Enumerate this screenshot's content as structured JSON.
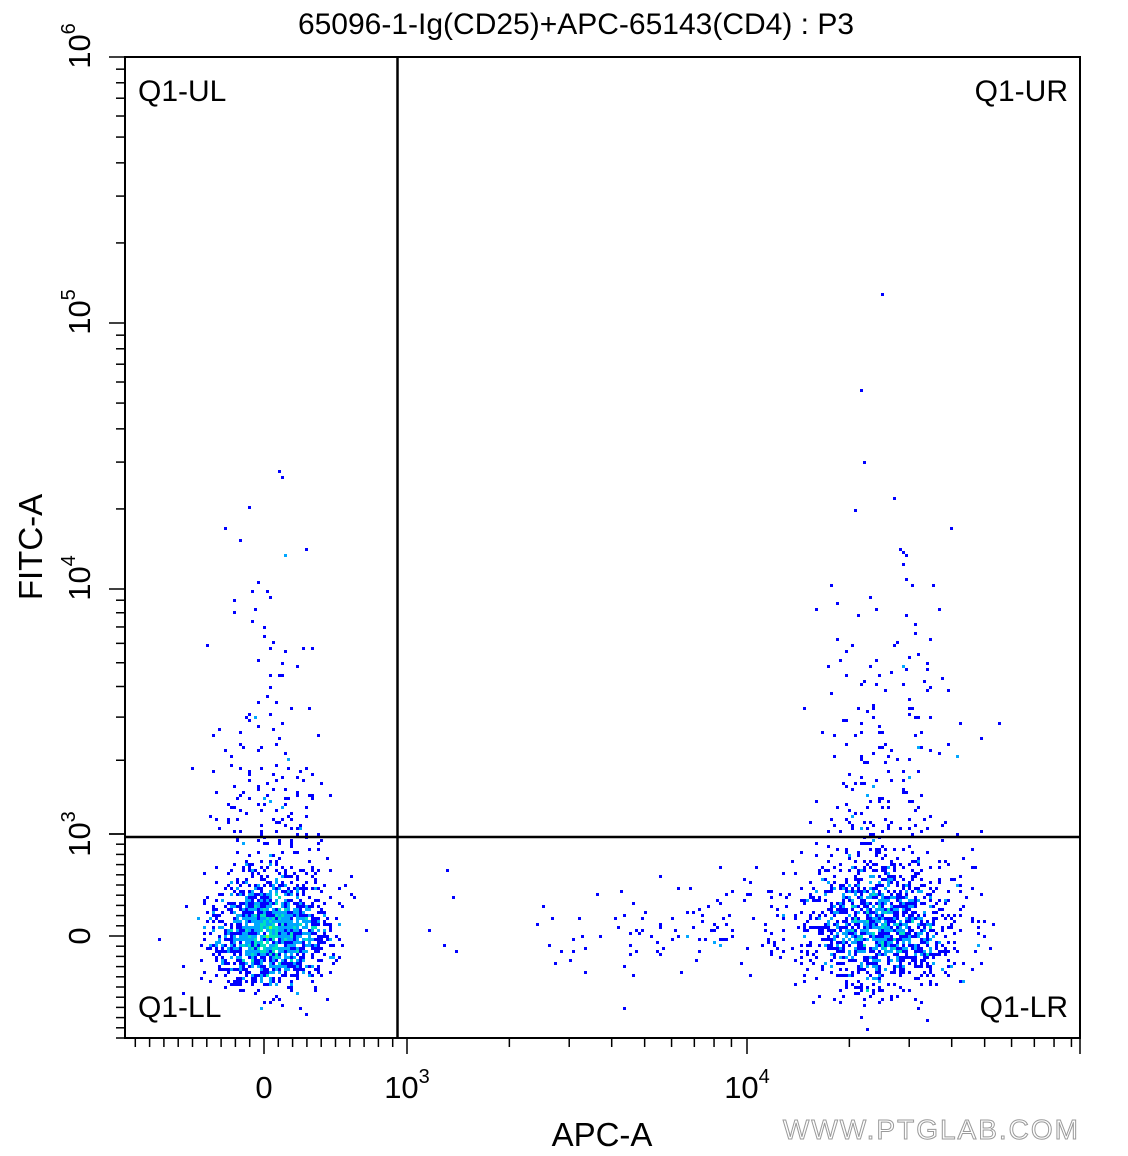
{
  "chart_data": {
    "type": "scatter",
    "title": "65096-1-Ig(CD25)+APC-65143(CD4) : P3",
    "xlabel": "APC-A",
    "ylabel": "FITC-A",
    "x_scale": "biexponential",
    "y_scale": "biexponential",
    "x_tick_labels": [
      {
        "base": "0",
        "exp": ""
      },
      {
        "base": "10",
        "exp": "3"
      },
      {
        "base": "10",
        "exp": "4"
      }
    ],
    "y_tick_labels": [
      {
        "base": "0",
        "exp": ""
      },
      {
        "base": "10",
        "exp": "3"
      },
      {
        "base": "10",
        "exp": "4"
      },
      {
        "base": "10",
        "exp": "5"
      },
      {
        "base": "10",
        "exp": "6"
      }
    ],
    "quadrant_gate": {
      "x": 900,
      "y": 1000
    },
    "quadrants": [
      "Q1-UL",
      "Q1-UR",
      "Q1-LL",
      "Q1-LR"
    ],
    "populations": [
      {
        "center_x": 40,
        "center_y": 40,
        "count": 1800
      },
      {
        "center_x": 25000,
        "center_y": 60,
        "count": 1700
      }
    ],
    "colors": [
      "#0000ff",
      "#00a6ff",
      "#00e0c0",
      "#7fff3a",
      "#ffe000",
      "#ff0000"
    ],
    "grid": false,
    "legend": "none"
  },
  "watermark": "WWW.PTGLAB.COM"
}
